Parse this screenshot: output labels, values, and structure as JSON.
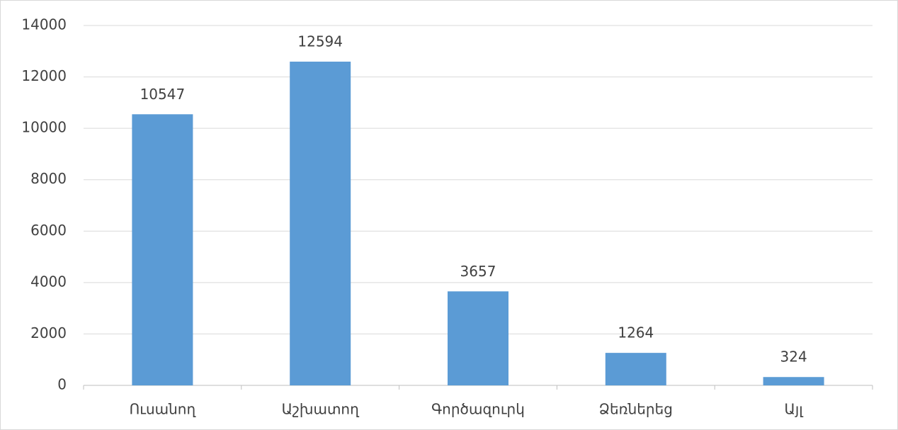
{
  "chart_data": {
    "type": "bar",
    "categories": [
      "Ուսանող",
      "Աշխատող",
      "Գործազուրկ",
      "Ձեռներեց",
      "Այլ"
    ],
    "values": [
      10547,
      12594,
      3657,
      1264,
      324
    ],
    "color": "#5b9bd5",
    "ylim": [
      0,
      14000
    ],
    "yticks": [
      0,
      2000,
      4000,
      6000,
      8000,
      10000,
      12000,
      14000
    ],
    "grid": true,
    "data_labels": true
  }
}
